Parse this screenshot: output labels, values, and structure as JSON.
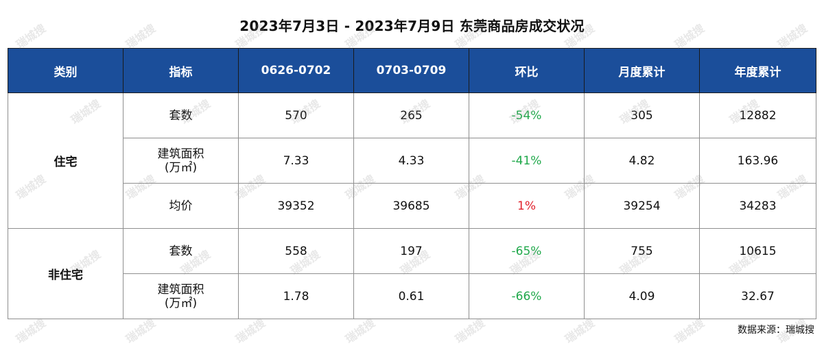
{
  "title": "2023年7月3日 - 2023年7月9日 东莞商品房成交状况",
  "watermark": "瑞城搜",
  "table": {
    "headers": [
      "类别",
      "指标",
      "0626-0702",
      "0703-0709",
      "环比",
      "月度累计",
      "年度累计"
    ],
    "groups": [
      {
        "category": "住宅",
        "rows": [
          {
            "indicator": "套数",
            "indicator_unit": "",
            "prev": "570",
            "curr": "265",
            "change": "-54%",
            "change_dir": "down",
            "month": "305",
            "year": "12882"
          },
          {
            "indicator": "建筑面积",
            "indicator_unit": "(万㎡)",
            "prev": "7.33",
            "curr": "4.33",
            "change": "-41%",
            "change_dir": "down",
            "month": "4.82",
            "year": "163.96"
          },
          {
            "indicator": "均价",
            "indicator_unit": "",
            "prev": "39352",
            "curr": "39685",
            "change": "1%",
            "change_dir": "up",
            "month": "39254",
            "year": "34283"
          }
        ]
      },
      {
        "category": "非住宅",
        "rows": [
          {
            "indicator": "套数",
            "indicator_unit": "",
            "prev": "558",
            "curr": "197",
            "change": "-65%",
            "change_dir": "down",
            "month": "755",
            "year": "10615"
          },
          {
            "indicator": "建筑面积",
            "indicator_unit": "(万㎡)",
            "prev": "1.78",
            "curr": "0.61",
            "change": "-66%",
            "change_dir": "down",
            "month": "4.09",
            "year": "32.67"
          }
        ]
      }
    ]
  },
  "source": "数据来源：瑞城搜",
  "colors": {
    "header_bg": "#1b4e9a",
    "header_text": "#ffffff",
    "decrease": "#1fa84a",
    "increase": "#e0202a"
  }
}
